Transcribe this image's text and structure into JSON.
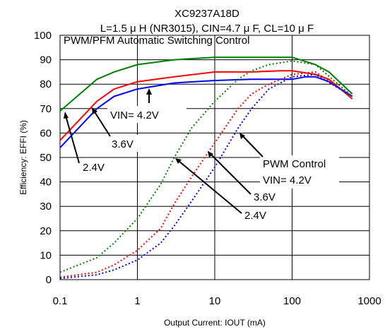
{
  "chart_data": {
    "type": "line",
    "title": "XC9237A18D",
    "subtitle": "L=1.5 μ H (NR3015), CIN=4.7 μ F, CL=10 μ F",
    "partial_legend_text": "PWM/PFM Automatic Switching Control",
    "xlabel": "Output Current: IOUT (mA)",
    "ylabel": "Efficiency: EFFI (%)",
    "xscale": "log",
    "xlim": [
      0.1,
      1000
    ],
    "ylim": [
      0,
      100
    ],
    "xticks": [
      "0.1",
      "1",
      "10",
      "100",
      "1000"
    ],
    "yticks": [
      "0",
      "10",
      "20",
      "30",
      "40",
      "50",
      "60",
      "70",
      "80",
      "90",
      "100"
    ],
    "grid": true,
    "series": [
      {
        "name": "2.4V",
        "mode": "PWM/PFM",
        "color": "#008000",
        "dash": "solid",
        "x": [
          0.1,
          0.3,
          0.5,
          1,
          3,
          10,
          30,
          100,
          200,
          300,
          600
        ],
        "y": [
          69,
          82,
          85,
          88,
          90,
          91,
          91,
          91,
          88,
          85,
          76
        ]
      },
      {
        "name": "3.6V",
        "mode": "PWM/PFM",
        "color": "#ff0000",
        "dash": "solid",
        "x": [
          0.1,
          0.3,
          0.5,
          1,
          3,
          10,
          30,
          70,
          100,
          200,
          300,
          600
        ],
        "y": [
          57,
          73,
          78,
          81,
          83,
          85,
          85,
          85.5,
          85.5,
          84,
          82,
          74
        ]
      },
      {
        "name": "VIN= 4.2V",
        "mode": "PWM/PFM",
        "color": "#0000ff",
        "dash": "solid",
        "x": [
          0.1,
          0.3,
          0.5,
          1,
          3,
          10,
          30,
          100,
          150,
          200,
          300,
          600
        ],
        "y": [
          54,
          70,
          75,
          78,
          80.5,
          81.5,
          82,
          82,
          83,
          83,
          81,
          75
        ]
      },
      {
        "name": "2.4V",
        "mode": "PWM",
        "color": "#008000",
        "dash": "dotted",
        "x": [
          0.1,
          0.3,
          0.5,
          1,
          2,
          3,
          5,
          10,
          20,
          30,
          50,
          100,
          200,
          600
        ],
        "y": [
          3,
          9,
          15,
          25,
          39,
          50,
          62,
          73,
          82,
          85.5,
          88,
          89.5,
          88,
          75
        ]
      },
      {
        "name": "3.6V",
        "mode": "PWM",
        "color": "#ff0000",
        "dash": "dotted",
        "x": [
          0.1,
          0.3,
          0.5,
          1,
          2,
          3,
          5,
          10,
          20,
          30,
          50,
          100,
          200,
          600
        ],
        "y": [
          1,
          3,
          6,
          12,
          21,
          31,
          42,
          56,
          70,
          76,
          80,
          84,
          85,
          75
        ]
      },
      {
        "name": "VIN= 4.2V",
        "mode": "PWM",
        "color": "#0000ff",
        "dash": "dotted",
        "x": [
          0.1,
          0.3,
          0.5,
          1,
          2,
          3,
          5,
          10,
          20,
          30,
          50,
          100,
          200,
          600
        ],
        "y": [
          0.5,
          2,
          4,
          8,
          15,
          22,
          32,
          46,
          62,
          70,
          78,
          83,
          84,
          75
        ]
      }
    ],
    "annotations": [
      {
        "id": "ann-42-solid",
        "text": "VIN= 4.2V"
      },
      {
        "id": "ann-36-solid",
        "text": "3.6V"
      },
      {
        "id": "ann-24-solid",
        "text": "2.4V"
      },
      {
        "id": "ann-pwm",
        "text": "PWM Control"
      },
      {
        "id": "ann-42-dot",
        "text": "VIN= 4.2V"
      },
      {
        "id": "ann-36-dot",
        "text": "3.6V"
      },
      {
        "id": "ann-24-dot",
        "text": "2.4V"
      }
    ]
  }
}
